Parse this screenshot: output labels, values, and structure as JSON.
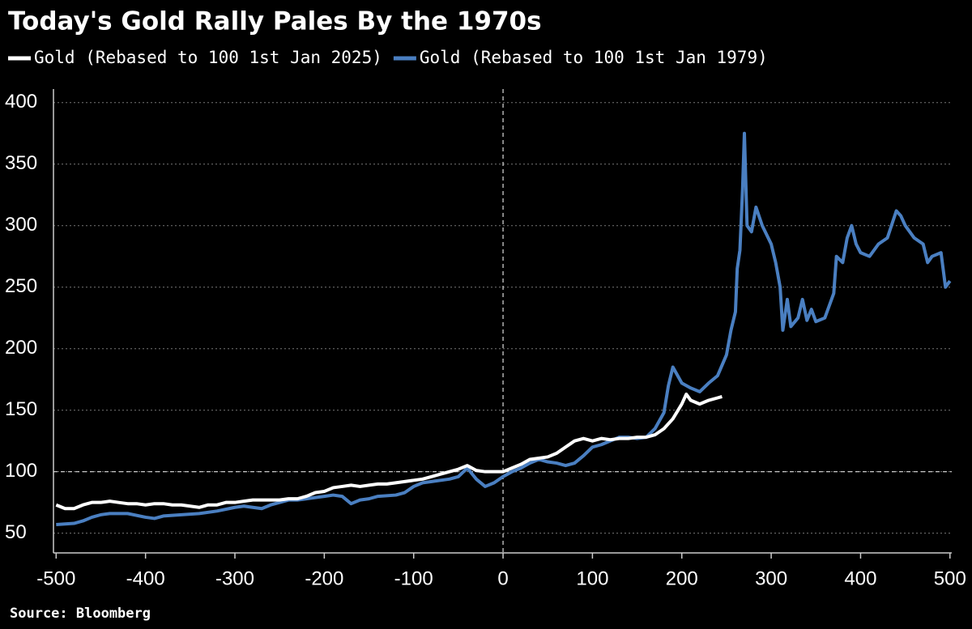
{
  "chart_data": {
    "type": "line",
    "title": "Today's Gold Rally Pales By the 1970s",
    "source": "Source: Bloomberg",
    "xlim": [
      -503,
      502
    ],
    "ylim": [
      34,
      411
    ],
    "xticks": [
      -500,
      -400,
      -300,
      -200,
      -100,
      0,
      100,
      200,
      300,
      400,
      500
    ],
    "yticks": [
      50,
      100,
      150,
      200,
      250,
      300,
      350,
      400
    ],
    "grid": true,
    "hline": 100,
    "vline": 0,
    "legend": "top-left",
    "series": [
      {
        "name": "Gold (Rebased to 100 1st Jan 2025)",
        "color": "#ffffff",
        "x": [
          -500,
          -490,
          -480,
          -470,
          -460,
          -450,
          -440,
          -430,
          -420,
          -410,
          -400,
          -390,
          -380,
          -370,
          -360,
          -350,
          -340,
          -330,
          -320,
          -310,
          -300,
          -290,
          -280,
          -270,
          -260,
          -250,
          -240,
          -230,
          -220,
          -210,
          -200,
          -190,
          -180,
          -170,
          -160,
          -150,
          -140,
          -130,
          -120,
          -110,
          -100,
          -90,
          -80,
          -70,
          -60,
          -50,
          -40,
          -30,
          -20,
          -10,
          0,
          10,
          20,
          30,
          40,
          50,
          60,
          70,
          80,
          90,
          100,
          110,
          120,
          130,
          140,
          150,
          160,
          170,
          180,
          190,
          200,
          205,
          210,
          220,
          230,
          240,
          245
        ],
        "values": [
          73,
          70,
          70,
          73,
          75,
          75,
          76,
          75,
          74,
          74,
          73,
          74,
          74,
          73,
          73,
          72,
          71,
          73,
          73,
          75,
          75,
          76,
          77,
          77,
          77,
          77,
          78,
          78,
          80,
          83,
          84,
          87,
          88,
          89,
          88,
          89,
          90,
          90,
          91,
          92,
          93,
          94,
          96,
          98,
          100,
          102,
          105,
          101,
          100,
          100,
          100,
          103,
          106,
          110,
          111,
          112,
          115,
          120,
          125,
          127,
          125,
          127,
          126,
          127,
          127,
          128,
          128,
          130,
          135,
          143,
          155,
          163,
          158,
          155,
          158,
          160,
          161
        ]
      },
      {
        "name": "Gold (Rebased to 100 1st Jan 1979)",
        "color": "#4a7fc1",
        "x": [
          -500,
          -480,
          -470,
          -460,
          -450,
          -440,
          -420,
          -400,
          -390,
          -380,
          -360,
          -340,
          -320,
          -300,
          -290,
          -280,
          -270,
          -260,
          -250,
          -240,
          -230,
          -220,
          -200,
          -190,
          -180,
          -170,
          -160,
          -150,
          -140,
          -120,
          -110,
          -100,
          -90,
          -80,
          -60,
          -50,
          -40,
          -30,
          -20,
          -10,
          0,
          10,
          20,
          30,
          40,
          50,
          60,
          70,
          80,
          90,
          100,
          110,
          120,
          130,
          140,
          150,
          160,
          170,
          180,
          185,
          190,
          200,
          210,
          220,
          230,
          240,
          250,
          255,
          260,
          262,
          265,
          268,
          270,
          273,
          278,
          283,
          290,
          300,
          305,
          310,
          313,
          318,
          322,
          330,
          335,
          340,
          345,
          350,
          360,
          370,
          373,
          380,
          385,
          390,
          395,
          400,
          410,
          420,
          430,
          440,
          445,
          450,
          460,
          470,
          475,
          480,
          490,
          495,
          500
        ],
        "values": [
          57,
          58,
          60,
          63,
          65,
          66,
          66,
          63,
          62,
          64,
          65,
          66,
          68,
          71,
          72,
          71,
          70,
          73,
          75,
          77,
          77,
          78,
          80,
          81,
          80,
          74,
          77,
          78,
          80,
          81,
          83,
          88,
          91,
          92,
          94,
          96,
          103,
          94,
          88,
          91,
          96,
          100,
          103,
          107,
          110,
          108,
          107,
          105,
          107,
          113,
          120,
          122,
          125,
          128,
          128,
          127,
          128,
          135,
          148,
          170,
          185,
          172,
          168,
          165,
          172,
          178,
          195,
          215,
          230,
          265,
          280,
          330,
          375,
          300,
          295,
          315,
          300,
          285,
          270,
          250,
          215,
          240,
          218,
          225,
          240,
          223,
          232,
          222,
          225,
          245,
          275,
          270,
          290,
          300,
          285,
          278,
          275,
          285,
          290,
          312,
          308,
          300,
          290,
          285,
          270,
          275,
          278,
          250,
          255
        ]
      }
    ]
  }
}
